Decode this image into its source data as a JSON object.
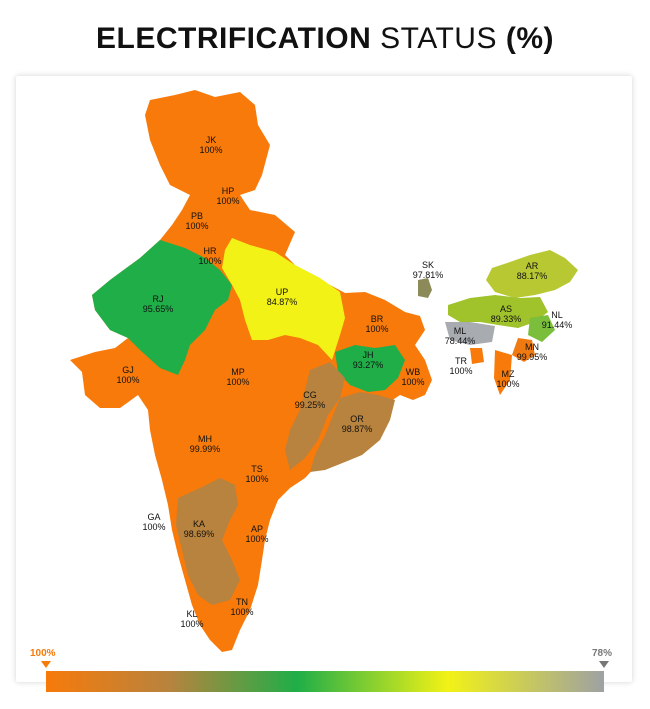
{
  "title": {
    "bold_part": "ELECTRIFICATION",
    "normal_part": "STATUS",
    "suffix": "(%)"
  },
  "colors": {
    "full": "#f77a0a",
    "high": "#b8833e",
    "mid": "#1fae48",
    "low": "#f2f216",
    "lowest": "#a8acb0"
  },
  "states": [
    {
      "code": "JK",
      "value": "100%"
    },
    {
      "code": "HP",
      "value": "100%"
    },
    {
      "code": "PB",
      "value": "100%"
    },
    {
      "code": "HR",
      "value": "100%"
    },
    {
      "code": "RJ",
      "value": "95.65%"
    },
    {
      "code": "UP",
      "value": "84.87%"
    },
    {
      "code": "GJ",
      "value": "100%"
    },
    {
      "code": "MP",
      "value": "100%"
    },
    {
      "code": "BR",
      "value": "100%"
    },
    {
      "code": "JH",
      "value": "93.27%"
    },
    {
      "code": "WB",
      "value": "100%"
    },
    {
      "code": "CG",
      "value": "99.25%"
    },
    {
      "code": "OR",
      "value": "98.87%"
    },
    {
      "code": "MH",
      "value": "99.99%"
    },
    {
      "code": "TS",
      "value": "100%"
    },
    {
      "code": "GA",
      "value": "100%"
    },
    {
      "code": "KA",
      "value": "98.69%"
    },
    {
      "code": "AP",
      "value": "100%"
    },
    {
      "code": "KL",
      "value": "100%"
    },
    {
      "code": "TN",
      "value": "100%"
    },
    {
      "code": "SK",
      "value": "97.81%"
    },
    {
      "code": "AR",
      "value": "88.17%"
    },
    {
      "code": "AS",
      "value": "89.33%"
    },
    {
      "code": "NL",
      "value": "91.44%"
    },
    {
      "code": "ML",
      "value": "78.44%"
    },
    {
      "code": "MN",
      "value": "99.95%"
    },
    {
      "code": "TR",
      "value": "100%"
    },
    {
      "code": "MZ",
      "value": "100%"
    }
  ],
  "scale": {
    "left_label": "100%",
    "right_label": "78%"
  }
}
